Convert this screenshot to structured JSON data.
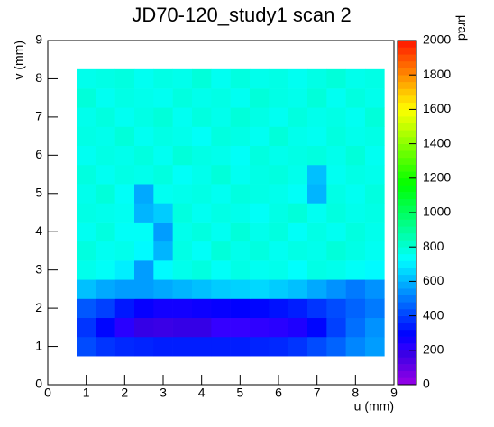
{
  "chart_data": {
    "type": "heatmap",
    "title": "JD70-120_study1 scan 2",
    "x_label": "u (mm)",
    "y_label": "v (mm)",
    "z_label": "µrad",
    "palette": "rainbow",
    "xlim": [
      0,
      9
    ],
    "ylim": [
      0,
      9
    ],
    "zlim": [
      0,
      2000
    ],
    "xticks": [
      0,
      1,
      2,
      3,
      4,
      5,
      6,
      7,
      8,
      9
    ],
    "yticks": [
      0,
      1,
      2,
      3,
      4,
      5,
      6,
      7,
      8,
      9
    ],
    "zticks": [
      0,
      200,
      400,
      600,
      800,
      1000,
      1200,
      1400,
      1600,
      1800,
      2000
    ],
    "xbins": [
      0.75,
      1.25,
      1.75,
      2.25,
      2.75,
      3.25,
      3.75,
      4.25,
      4.75,
      5.25,
      5.75,
      6.25,
      6.75,
      7.25,
      7.75,
      8.25,
      8.75
    ],
    "ybins": [
      0.75,
      1.25,
      1.75,
      2.25,
      2.75,
      3.25,
      3.75,
      4.25,
      4.75,
      5.25,
      5.75,
      6.25,
      6.75,
      7.25,
      7.75,
      8.25
    ],
    "z": [
      [
        420,
        380,
        360,
        350,
        340,
        340,
        340,
        340,
        340,
        350,
        360,
        380,
        420,
        460,
        520,
        560
      ],
      [
        380,
        300,
        220,
        190,
        180,
        190,
        190,
        200,
        200,
        210,
        220,
        240,
        300,
        400,
        480,
        540
      ],
      [
        440,
        400,
        330,
        280,
        260,
        260,
        270,
        280,
        290,
        300,
        320,
        340,
        380,
        420,
        460,
        500
      ],
      [
        620,
        580,
        560,
        560,
        580,
        600,
        620,
        640,
        650,
        660,
        640,
        620,
        580,
        540,
        500,
        540
      ],
      [
        760,
        740,
        700,
        560,
        720,
        760,
        780,
        740,
        770,
        750,
        760,
        730,
        770,
        760,
        740,
        720
      ],
      [
        780,
        750,
        760,
        720,
        600,
        770,
        740,
        790,
        760,
        780,
        750,
        770,
        760,
        790,
        770,
        750
      ],
      [
        750,
        780,
        740,
        740,
        560,
        760,
        780,
        750,
        790,
        760,
        780,
        740,
        770,
        750,
        780,
        760
      ],
      [
        770,
        760,
        750,
        600,
        640,
        780,
        750,
        770,
        760,
        740,
        770,
        790,
        750,
        780,
        760,
        770
      ],
      [
        760,
        790,
        740,
        580,
        750,
        760,
        770,
        750,
        780,
        770,
        760,
        740,
        600,
        770,
        750,
        780
      ],
      [
        780,
        750,
        770,
        760,
        780,
        740,
        760,
        790,
        750,
        770,
        780,
        760,
        620,
        750,
        770,
        760
      ],
      [
        750,
        770,
        760,
        780,
        750,
        790,
        770,
        760,
        740,
        780,
        760,
        770,
        780,
        760,
        790,
        750
      ],
      [
        770,
        760,
        790,
        750,
        770,
        760,
        740,
        780,
        770,
        750,
        790,
        760,
        750,
        780,
        760,
        770
      ],
      [
        760,
        780,
        750,
        770,
        790,
        750,
        780,
        760,
        790,
        770,
        750,
        780,
        760,
        770,
        750,
        790
      ],
      [
        790,
        750,
        770,
        760,
        750,
        780,
        760,
        770,
        750,
        790,
        770,
        760,
        790,
        750,
        780,
        760
      ],
      [
        760,
        770,
        780,
        750,
        770,
        760,
        790,
        750,
        780,
        760,
        770,
        750,
        770,
        790,
        760,
        770
      ]
    ]
  }
}
